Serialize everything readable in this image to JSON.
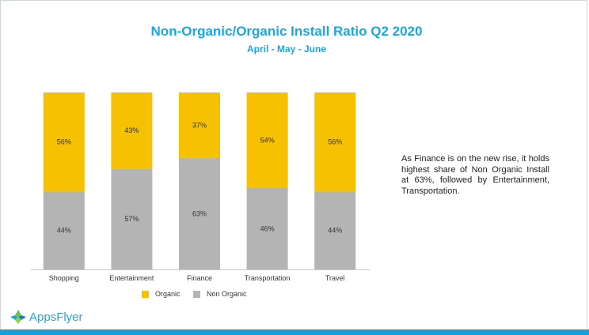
{
  "header": {
    "title": "Non-Organic/Organic Install Ratio Q2 2020",
    "subtitle": "April - May - June"
  },
  "note": "As Finance is on the  new rise, it holds highest share of Non Organic Install at 63%, followed by Entertainment, Transportation.",
  "brand": {
    "name": "AppsFlyer",
    "logo_text": "AppsFlyer",
    "logo_icon": "appsflyer-logo-icon"
  },
  "colors": {
    "organic": "#f6c100",
    "non_organic": "#b4b4b4",
    "title": "#1aa7e0",
    "accent_bar": "#12a1dc"
  },
  "chart_data": {
    "type": "bar",
    "stacked": true,
    "normalized": true,
    "categories": [
      "Shopping",
      "Entertainment",
      "Finance",
      "Transportation",
      "Travel"
    ],
    "series": [
      {
        "name": "Non Organic",
        "values": [
          44,
          57,
          63,
          46,
          44
        ],
        "labels": [
          "44%",
          "57%",
          "63%",
          "46%",
          "44%"
        ],
        "color": "#b4b4b4"
      },
      {
        "name": "Organic",
        "values": [
          56,
          43,
          37,
          54,
          56
        ],
        "labels": [
          "56%",
          "43%",
          "37%",
          "54%",
          "56%"
        ],
        "color": "#f6c100"
      }
    ],
    "ylim": [
      0,
      100
    ],
    "legend": {
      "position": "bottom",
      "entries": [
        "Organic",
        "Non Organic"
      ]
    },
    "grid": false
  }
}
